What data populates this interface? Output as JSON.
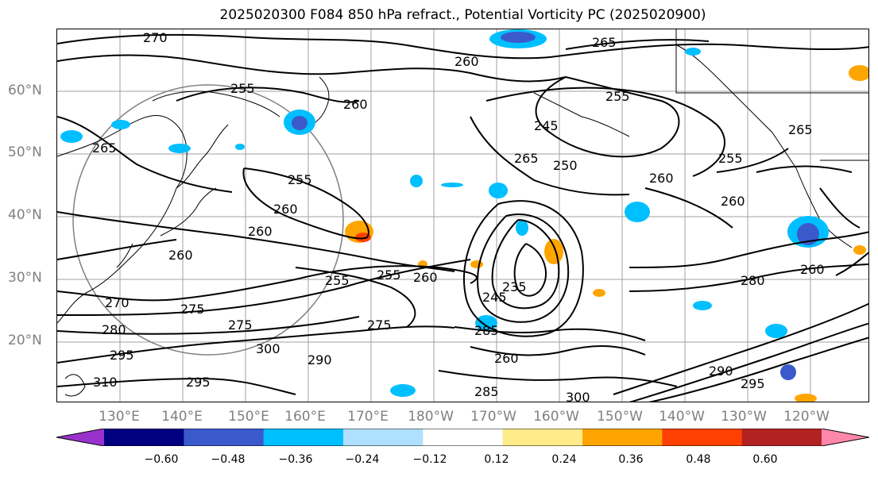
{
  "title": "2025020300 F084 850 hPa refract., Potential Vorticity PC (2025020900)",
  "lat_labels": [
    "60°N",
    "50°N",
    "40°N",
    "30°N",
    "20°N"
  ],
  "lon_labels": [
    "130°E",
    "140°E",
    "150°E",
    "160°E",
    "170°E",
    "180°W",
    "170°W",
    "160°W",
    "150°W",
    "140°W",
    "130°W",
    "120°W"
  ],
  "contour_labels": [
    "270",
    "265",
    "260",
    "255",
    "260",
    "265",
    "255",
    "260",
    "260",
    "260",
    "270",
    "275",
    "275",
    "280",
    "295",
    "300",
    "290",
    "310",
    "295",
    "255",
    "255",
    "275",
    "260",
    "235",
    "245",
    "285",
    "260",
    "265",
    "250",
    "245",
    "255",
    "260",
    "255",
    "260",
    "265",
    "280",
    "260",
    "290",
    "295",
    "300",
    "285"
  ],
  "colorbar": {
    "ticks": [
      "−0.60",
      "−0.48",
      "−0.36",
      "−0.24",
      "−0.12",
      "0.12",
      "0.24",
      "0.36",
      "0.48",
      "0.60"
    ],
    "colors": [
      "#9932cc",
      "#000080",
      "#3a5acc",
      "#00bfff",
      "#b0e0ff",
      "#ffffff",
      "#ffeb8a",
      "#ffa500",
      "#ff4000",
      "#b22222",
      "#ff88aa"
    ]
  }
}
